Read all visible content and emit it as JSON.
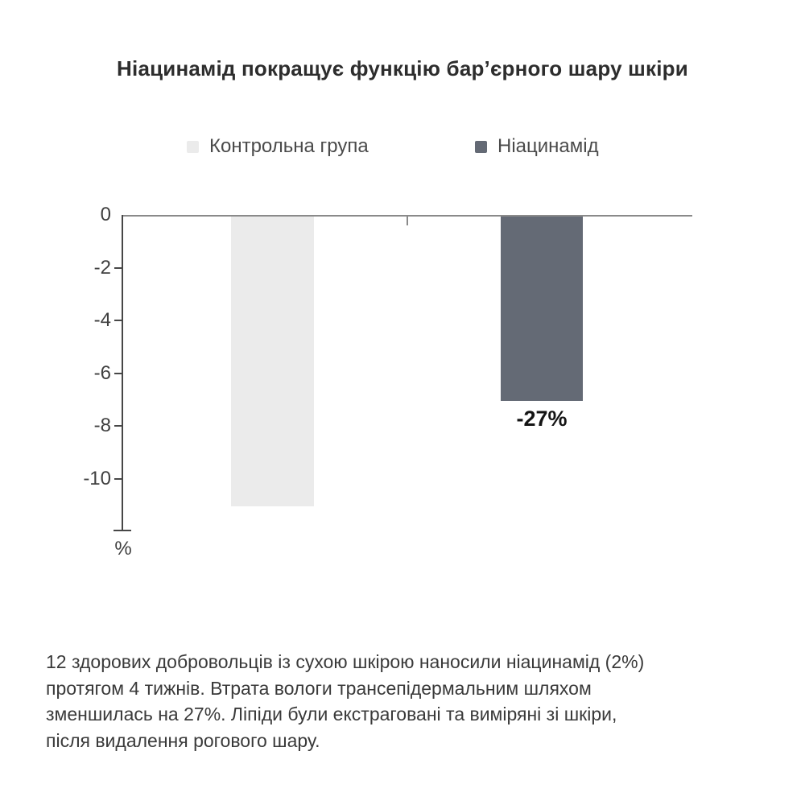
{
  "title": "Ніацинамід покращує функцію бар’єрного шару шкіри",
  "legend": {
    "items": [
      {
        "label": "Контрольна група",
        "color": "#ebebeb"
      },
      {
        "label": "Ніацинамід",
        "color": "#646a75"
      }
    ]
  },
  "chart_data": {
    "type": "bar",
    "title": "Ніацинамід покращує функцію бар’єрного шару шкіри",
    "categories": [
      "Контрольна група",
      "Ніацинамід"
    ],
    "values": [
      -11,
      -7
    ],
    "bar_colors": [
      "#ebebeb",
      "#646a75"
    ],
    "bar_value_labels": [
      "",
      "-27%"
    ],
    "ylabel": "%",
    "ytick_labels": [
      "0",
      "-2",
      "-4",
      "-6",
      "-8",
      "-10"
    ],
    "yticks": [
      0,
      -2,
      -4,
      -6,
      -8,
      -10
    ],
    "ylim": [
      -12,
      0
    ],
    "grid": false,
    "legend_position": "top"
  },
  "footnote": {
    "lines": [
      "12 здорових добровольців із сухою шкірою наносили ніацинамід (2%)",
      "протягом 4 тижнів. Втрата вологи трансепідермальним шляхом",
      "зменшилась на 27%. Ліпіди були екстраговані та виміряні зі шкіри,",
      "після видалення рогового шару."
    ]
  }
}
